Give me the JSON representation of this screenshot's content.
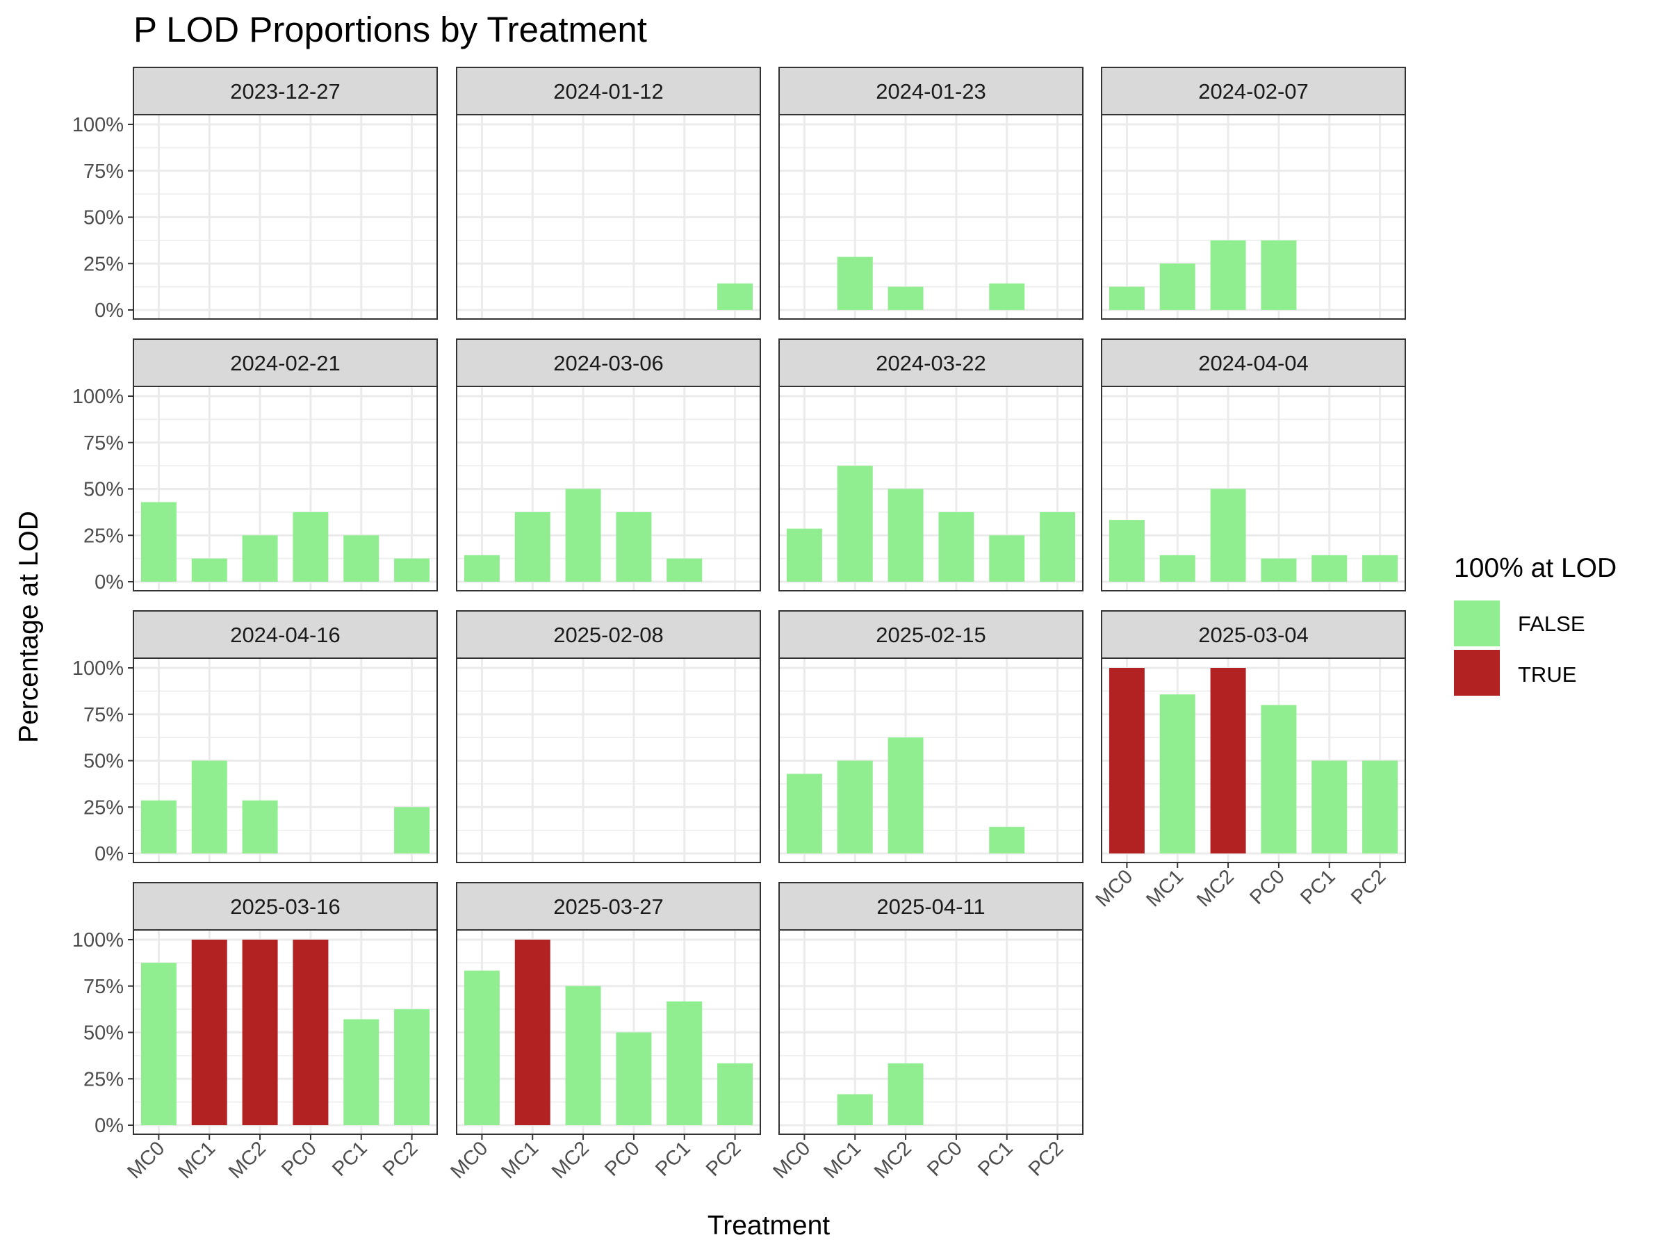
{
  "chart_data": {
    "type": "bar",
    "title": "P LOD Proportions by Treatment",
    "xlabel": "Treatment",
    "ylabel": "Percentage at LOD",
    "categories": [
      "MC0",
      "MC1",
      "MC2",
      "PC0",
      "PC1",
      "PC2"
    ],
    "y_ticks": [
      "0%",
      "25%",
      "50%",
      "75%",
      "100%"
    ],
    "ylim": [
      0,
      100
    ],
    "grid": true,
    "legend": {
      "title": "100% at LOD",
      "position": "right",
      "entries": [
        {
          "label": "FALSE",
          "color": "#90EE90"
        },
        {
          "label": "TRUE",
          "color": "#B22222"
        }
      ]
    },
    "colors": {
      "false": "#90EE90",
      "true": "#B22222",
      "strip_bg": "#D9D9D9",
      "grid": "#EBEBEB"
    },
    "facets": [
      {
        "date": "2023-12-27",
        "values": [
          0,
          0,
          0,
          0,
          0,
          0
        ]
      },
      {
        "date": "2024-01-12",
        "values": [
          0,
          0,
          0,
          0,
          0,
          14.3
        ]
      },
      {
        "date": "2024-01-23",
        "values": [
          0,
          28.6,
          12.5,
          0,
          14.3,
          0
        ]
      },
      {
        "date": "2024-02-07",
        "values": [
          12.5,
          25,
          37.5,
          37.5,
          0,
          0
        ]
      },
      {
        "date": "2024-02-21",
        "values": [
          42.9,
          12.5,
          25,
          37.5,
          25,
          12.5
        ]
      },
      {
        "date": "2024-03-06",
        "values": [
          14.3,
          37.5,
          50,
          37.5,
          12.5,
          0
        ]
      },
      {
        "date": "2024-03-22",
        "values": [
          28.6,
          62.5,
          50,
          37.5,
          25,
          37.5
        ]
      },
      {
        "date": "2024-04-04",
        "values": [
          33.3,
          14.3,
          50,
          12.5,
          14.3,
          14.3
        ]
      },
      {
        "date": "2024-04-16",
        "values": [
          28.6,
          50,
          28.6,
          0,
          0,
          25
        ]
      },
      {
        "date": "2025-02-08",
        "values": [
          0,
          0,
          0,
          0,
          0,
          0
        ]
      },
      {
        "date": "2025-02-15",
        "values": [
          42.9,
          50,
          62.5,
          0,
          14.3,
          0
        ]
      },
      {
        "date": "2025-03-04",
        "values": [
          100,
          85.7,
          100,
          80,
          50,
          50
        ]
      },
      {
        "date": "2025-03-16",
        "values": [
          87.5,
          100,
          100,
          100,
          57.1,
          62.5
        ]
      },
      {
        "date": "2025-03-27",
        "values": [
          83.3,
          100,
          75,
          50,
          66.7,
          33.3
        ]
      },
      {
        "date": "2025-04-11",
        "values": [
          0,
          16.7,
          33.3,
          0,
          0,
          0
        ]
      }
    ]
  }
}
